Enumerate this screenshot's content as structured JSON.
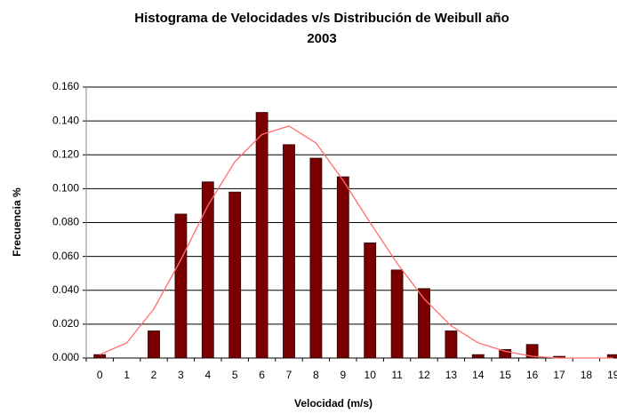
{
  "chart_data": {
    "type": "bar",
    "title": [
      "Histograma de Velocidades v/s Distribución de Weibull año",
      "2003"
    ],
    "x_label": "Velocidad (m/s)",
    "y_label": "Frecuencia  %",
    "categories": [
      "0",
      "1",
      "2",
      "3",
      "4",
      "5",
      "6",
      "7",
      "8",
      "9",
      "10",
      "11",
      "12",
      "13",
      "14",
      "15",
      "16",
      "17",
      "18",
      "19"
    ],
    "series": [
      {
        "type": "bar",
        "color": "#7a0000",
        "values": [
          0.002,
          0,
          0.016,
          0.085,
          0.104,
          0.098,
          0.145,
          0.126,
          0.118,
          0.107,
          0.068,
          0.052,
          0.041,
          0.016,
          0.002,
          0.005,
          0.008,
          0.001,
          0,
          0.002
        ]
      },
      {
        "type": "line",
        "color": "#ff6f6f",
        "values": [
          0.002,
          0.009,
          0.029,
          0.058,
          0.09,
          0.116,
          0.132,
          0.137,
          0.127,
          0.105,
          0.08,
          0.056,
          0.035,
          0.019,
          0.009,
          0.004,
          0.001,
          0,
          0,
          0
        ]
      }
    ],
    "ylim": [
      0,
      0.16
    ],
    "yticks": [
      {
        "value": 0,
        "label": "0.000"
      },
      {
        "value": 0.02,
        "label": "0.020"
      },
      {
        "value": 0.04,
        "label": "0.040"
      },
      {
        "value": 0.06,
        "label": "0.060"
      },
      {
        "value": 0.08,
        "label": "0.080"
      },
      {
        "value": 0.1,
        "label": "0.100"
      },
      {
        "value": 0.12,
        "label": "0.120"
      },
      {
        "value": 0.14,
        "label": "0.140"
      },
      {
        "value": 0.16,
        "label": "0.160"
      }
    ],
    "grid": true
  }
}
